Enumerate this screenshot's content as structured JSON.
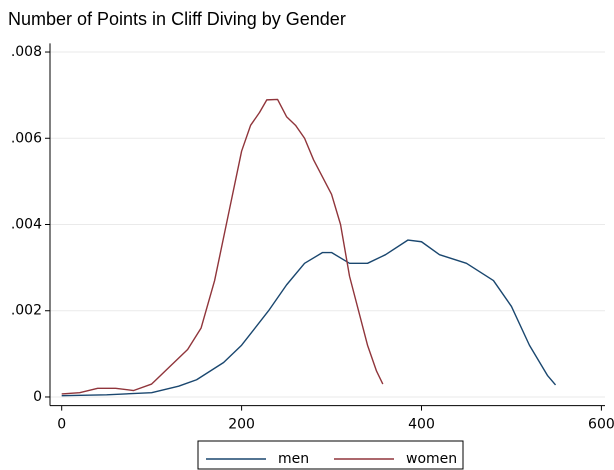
{
  "chart_data": {
    "type": "line",
    "title": "Number of Points in Cliff Diving by Gender",
    "series": [
      {
        "name": "men",
        "color": "#1a476f",
        "x": [
          0,
          50,
          100,
          130,
          150,
          180,
          200,
          230,
          250,
          270,
          290,
          300,
          320,
          340,
          360,
          385,
          400,
          420,
          450,
          480,
          500,
          520,
          540,
          549
        ],
        "values": [
          3e-05,
          5e-05,
          0.0001,
          0.00025,
          0.0004,
          0.0008,
          0.0012,
          0.002,
          0.0026,
          0.0031,
          0.00335,
          0.00335,
          0.0031,
          0.0031,
          0.0033,
          0.00364,
          0.0036,
          0.0033,
          0.0031,
          0.0027,
          0.0021,
          0.0012,
          0.0005,
          0.00028
        ]
      },
      {
        "name": "women",
        "color": "#90353b",
        "x": [
          0,
          20,
          40,
          60,
          80,
          100,
          120,
          140,
          155,
          170,
          185,
          200,
          210,
          220,
          228,
          240,
          250,
          260,
          270,
          280,
          300,
          310,
          320,
          340,
          350,
          357
        ],
        "values": [
          7e-05,
          0.0001,
          0.0002,
          0.0002,
          0.00015,
          0.0003,
          0.0007,
          0.0011,
          0.0016,
          0.0027,
          0.0042,
          0.0057,
          0.0063,
          0.0066,
          0.00689,
          0.0069,
          0.0065,
          0.0063,
          0.006,
          0.0055,
          0.0047,
          0.004,
          0.0028,
          0.0012,
          0.0006,
          0.0003
        ]
      }
    ],
    "xlim": [
      -13,
      604
    ],
    "xticks": [
      0,
      200,
      400,
      600
    ],
    "ylim": [
      -0.0002,
      0.0082
    ],
    "yticks": [
      0,
      {
        "value": 0.002,
        "label": ".002"
      },
      {
        "value": 0.004,
        "label": ".004"
      },
      {
        "value": 0.006,
        "label": ".006"
      },
      {
        "value": 0.008,
        "label": ".008"
      }
    ],
    "grid": true,
    "legend": "bottom"
  }
}
